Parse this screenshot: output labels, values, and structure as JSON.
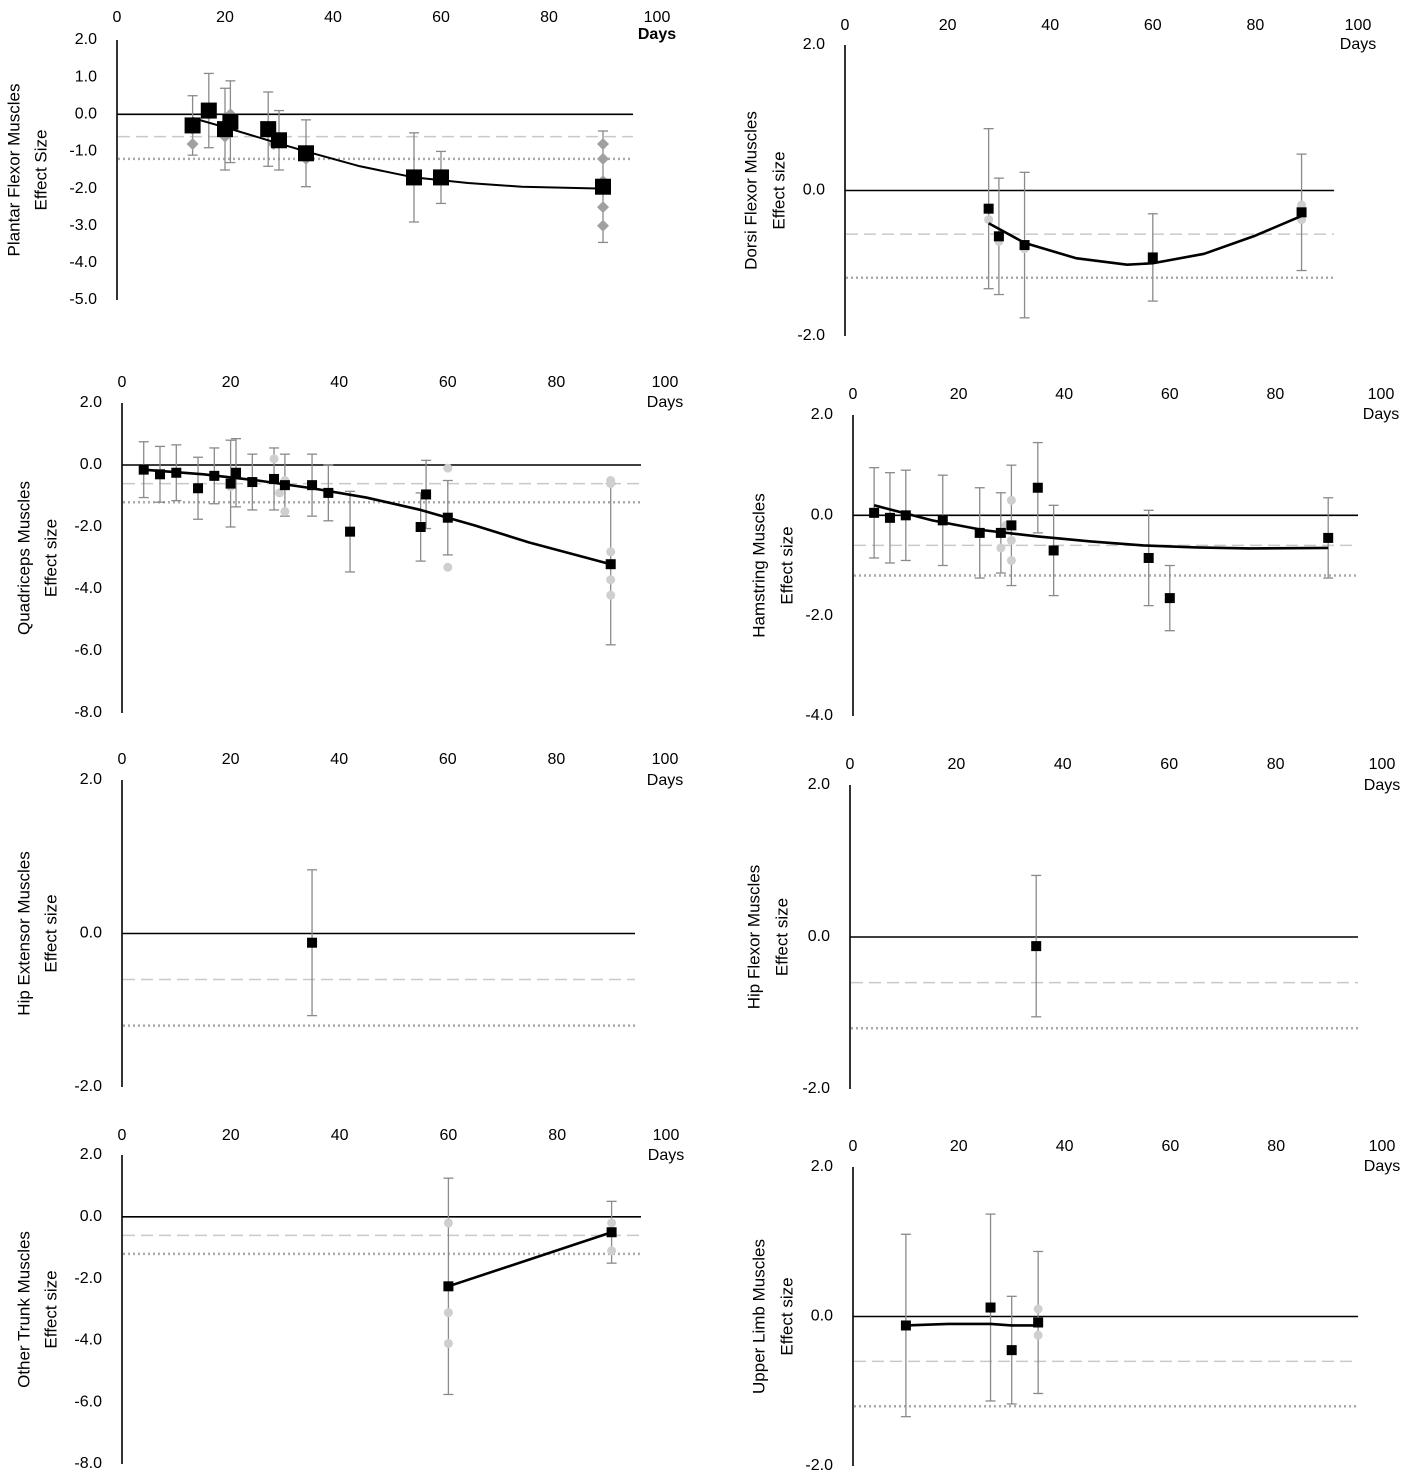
{
  "chart_data": [
    {
      "type": "scatter",
      "title": "",
      "ylabel": "Plantar Flexor Muscles",
      "ylabel2": "Effect Size",
      "xlabel": "Days",
      "xlabel_bold": true,
      "xticks": [
        0,
        20,
        40,
        60,
        80,
        100
      ],
      "yticks": [
        "2.0",
        "1.0",
        "0.0",
        "-1.0",
        "-2.0",
        "-3.0",
        "-4.0",
        "-5.0"
      ],
      "ylim": [
        -5,
        2
      ],
      "xlim": [
        0,
        95
      ],
      "reference_lines": [
        -0.6,
        -1.2
      ],
      "grid": false,
      "series": [
        {
          "kind": "mean",
          "x": [
            14,
            17,
            20,
            21,
            28,
            30,
            35,
            55,
            60,
            90
          ],
          "y": [
            -0.3,
            0.1,
            -0.4,
            -0.2,
            -0.4,
            -0.7,
            -1.05,
            -1.7,
            -1.7,
            -1.95
          ],
          "err": [
            0.8,
            1.0,
            1.1,
            1.1,
            1.0,
            0.8,
            0.9,
            1.2,
            0.7,
            1.5
          ]
        },
        {
          "kind": "individual",
          "x": [
            14,
            14,
            17,
            20,
            21,
            28,
            29,
            35,
            90,
            90,
            90,
            90,
            90
          ],
          "y": [
            -0.8,
            -0.4,
            0.0,
            -0.6,
            0.0,
            -0.5,
            -0.8,
            -1.2,
            -0.8,
            -1.2,
            -1.8,
            -2.5,
            -3.0
          ]
        }
      ],
      "trend": {
        "x": [
          14,
          20,
          28,
          35,
          45,
          55,
          65,
          75,
          90
        ],
        "y": [
          -0.1,
          -0.35,
          -0.7,
          -1.0,
          -1.4,
          -1.7,
          -1.85,
          -1.95,
          -2.0
        ]
      }
    },
    {
      "type": "scatter",
      "title": "",
      "ylabel": "Dorsi Flexor Muscles",
      "ylabel2": "Effect size",
      "xlabel": "Days",
      "xticks": [
        0,
        20,
        40,
        60,
        80,
        100
      ],
      "yticks": [
        "2.0",
        "0.0",
        "-2.0"
      ],
      "ylim": [
        -2,
        2
      ],
      "xlim": [
        0,
        95
      ],
      "reference_lines": [
        -0.6,
        -1.2
      ],
      "grid": false,
      "series": [
        {
          "kind": "mean",
          "x": [
            28,
            30,
            35,
            60,
            89
          ],
          "y": [
            -0.25,
            -0.63,
            -0.75,
            -0.92,
            -0.3
          ],
          "err": [
            1.1,
            0.8,
            1.0,
            0.6,
            0.8
          ]
        },
        {
          "kind": "individual",
          "x": [
            28,
            30,
            35,
            89,
            89
          ],
          "y": [
            -0.4,
            -0.7,
            -0.8,
            -0.2,
            -0.4
          ]
        }
      ],
      "trend": {
        "x": [
          28,
          35,
          45,
          55,
          60,
          70,
          80,
          89
        ],
        "y": [
          -0.45,
          -0.72,
          -0.93,
          -1.02,
          -1.0,
          -0.87,
          -0.62,
          -0.35
        ]
      }
    },
    {
      "type": "scatter",
      "title": "",
      "ylabel": "Quadriceps Muscles",
      "ylabel2": "Effect size",
      "xlabel": "Days",
      "xticks": [
        0,
        20,
        40,
        60,
        80,
        100
      ],
      "yticks": [
        "2.0",
        "0.0",
        "-2.0",
        "-4.0",
        "-6.0",
        "-8.0"
      ],
      "ylim": [
        -8,
        2
      ],
      "xlim": [
        0,
        95
      ],
      "reference_lines": [
        -0.6,
        -1.2
      ],
      "grid": false,
      "series": [
        {
          "kind": "mean",
          "x": [
            4,
            7,
            10,
            14,
            17,
            20,
            21,
            24,
            28,
            30,
            35,
            38,
            42,
            55,
            56,
            60,
            90
          ],
          "y": [
            -0.15,
            -0.3,
            -0.25,
            -0.75,
            -0.35,
            -0.6,
            -0.25,
            -0.55,
            -0.45,
            -0.65,
            -0.65,
            -0.9,
            -2.15,
            -2.0,
            -0.95,
            -1.7,
            -3.2
          ],
          "err": [
            0.9,
            0.9,
            0.9,
            1.0,
            0.9,
            1.4,
            1.1,
            0.9,
            1.0,
            1.0,
            1.0,
            0.9,
            1.3,
            1.1,
            1.1,
            1.2,
            2.6
          ]
        },
        {
          "kind": "individual",
          "x": [
            20,
            21,
            28,
            29,
            30,
            30,
            60,
            60,
            90,
            90,
            90,
            90,
            90
          ],
          "y": [
            -0.7,
            -0.3,
            0.2,
            -0.9,
            -1.5,
            -0.5,
            -0.1,
            -3.3,
            -0.5,
            -2.8,
            -3.7,
            -4.2,
            -0.6
          ]
        }
      ],
      "trend": {
        "x": [
          4,
          15,
          25,
          35,
          45,
          55,
          65,
          75,
          90
        ],
        "y": [
          -0.15,
          -0.3,
          -0.5,
          -0.75,
          -1.05,
          -1.45,
          -1.95,
          -2.5,
          -3.2
        ]
      }
    },
    {
      "type": "scatter",
      "title": "",
      "ylabel": "Hamstring Muscles",
      "ylabel2": "Effect size",
      "xlabel": "Days",
      "xticks": [
        0,
        20,
        40,
        60,
        80,
        100
      ],
      "yticks": [
        "2.0",
        "0.0",
        "-2.0",
        "-4.0"
      ],
      "ylim": [
        -4,
        2
      ],
      "xlim": [
        0,
        95
      ],
      "reference_lines": [
        -0.6,
        -1.2
      ],
      "grid": false,
      "series": [
        {
          "kind": "mean",
          "x": [
            4,
            7,
            10,
            17,
            24,
            28,
            30,
            35,
            38,
            56,
            60,
            90
          ],
          "y": [
            0.05,
            -0.05,
            0.0,
            -0.1,
            -0.35,
            -0.35,
            -0.2,
            0.55,
            -0.7,
            -0.85,
            -1.65,
            -0.45
          ],
          "err": [
            0.9,
            0.9,
            0.9,
            0.9,
            0.9,
            0.8,
            1.2,
            0.9,
            0.9,
            0.95,
            0.65,
            0.8
          ]
        },
        {
          "kind": "individual",
          "x": [
            28,
            29,
            30,
            30,
            30
          ],
          "y": [
            -0.65,
            -0.2,
            0.3,
            -0.5,
            -0.9
          ]
        }
      ],
      "trend": {
        "x": [
          4,
          15,
          25,
          35,
          45,
          55,
          65,
          75,
          90
        ],
        "y": [
          0.2,
          -0.1,
          -0.3,
          -0.42,
          -0.52,
          -0.6,
          -0.64,
          -0.66,
          -0.65
        ]
      }
    },
    {
      "type": "scatter",
      "title": "",
      "ylabel": "Hip Extensor Muscles",
      "ylabel2": "Effect size",
      "xlabel": "Days",
      "xticks": [
        0,
        20,
        40,
        60,
        80,
        100
      ],
      "yticks": [
        "2.0",
        "0.0",
        "-2.0"
      ],
      "ylim": [
        -2,
        2
      ],
      "xlim": [
        0,
        95
      ],
      "reference_lines": [
        -0.6,
        -1.2
      ],
      "grid": false,
      "series": [
        {
          "kind": "mean",
          "x": [
            35
          ],
          "y": [
            -0.12
          ],
          "err": [
            0.95
          ]
        }
      ]
    },
    {
      "type": "scatter",
      "title": "",
      "ylabel": "Hip Flexor Muscles",
      "ylabel2": "Effect size",
      "xlabel": "Days",
      "xticks": [
        0,
        20,
        40,
        60,
        80,
        100
      ],
      "yticks": [
        "2.0",
        "0.0",
        "-2.0"
      ],
      "ylim": [
        -2,
        2
      ],
      "xlim": [
        0,
        95
      ],
      "reference_lines": [
        -0.6,
        -1.2
      ],
      "grid": false,
      "series": [
        {
          "kind": "mean",
          "x": [
            35
          ],
          "y": [
            -0.12
          ],
          "err": [
            0.93
          ]
        }
      ]
    },
    {
      "type": "scatter",
      "title": "",
      "ylabel": "Other Trunk Muscles",
      "ylabel2": "Effect size",
      "xlabel": "Days",
      "xticks": [
        0,
        20,
        40,
        60,
        80,
        100
      ],
      "yticks": [
        "2.0",
        "0.0",
        "-2.0",
        "-4.0",
        "-6.0",
        "-8.0"
      ],
      "ylim": [
        -8,
        2
      ],
      "xlim": [
        0,
        95
      ],
      "reference_lines": [
        -0.6,
        -1.2
      ],
      "grid": false,
      "series": [
        {
          "kind": "mean",
          "x": [
            60,
            90
          ],
          "y": [
            -2.25,
            -0.5
          ],
          "err": [
            3.5,
            1.0
          ]
        },
        {
          "kind": "individual",
          "x": [
            60,
            60,
            60,
            90,
            90
          ],
          "y": [
            -0.2,
            -3.1,
            -4.1,
            -0.2,
            -1.1
          ]
        }
      ],
      "trend": {
        "x": [
          60,
          90
        ],
        "y": [
          -2.25,
          -0.5
        ]
      }
    },
    {
      "type": "scatter",
      "title": "",
      "ylabel": "Upper Limb Muscles",
      "ylabel2": "Effect size",
      "xlabel": "Days",
      "xticks": [
        0,
        20,
        40,
        60,
        80,
        100
      ],
      "yticks": [
        "2.0",
        "0.0",
        "-2.0"
      ],
      "ylim": [
        -2,
        2
      ],
      "xlim": [
        0,
        95
      ],
      "reference_lines": [
        -0.6,
        -1.2
      ],
      "grid": false,
      "series": [
        {
          "kind": "mean",
          "x": [
            10,
            26,
            30,
            35
          ],
          "y": [
            -0.12,
            0.12,
            -0.45,
            -0.08
          ],
          "err": [
            1.22,
            1.25,
            0.72,
            0.95
          ]
        },
        {
          "kind": "individual",
          "x": [
            35,
            35
          ],
          "y": [
            0.1,
            -0.25
          ]
        }
      ],
      "trend": {
        "x": [
          10,
          18,
          26,
          30,
          35
        ],
        "y": [
          -0.12,
          -0.1,
          -0.1,
          -0.12,
          -0.12
        ]
      }
    }
  ],
  "colors": {
    "mean_marker": "#000000",
    "individual_marker_diamond": "#a0a0a0",
    "individual_marker_circle": "#cfcfcf",
    "error_bar": "#8a8a8a",
    "reference_dashed": "#c9c9c9",
    "reference_dotted": "#a9a9a9"
  }
}
